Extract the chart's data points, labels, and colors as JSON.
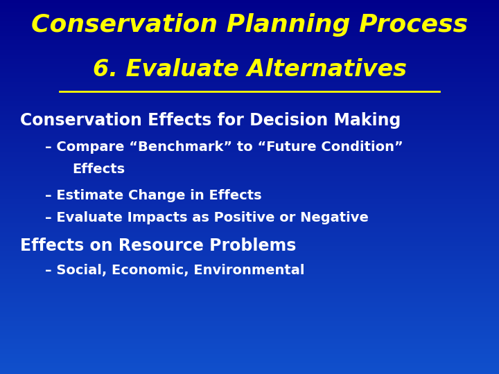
{
  "title_line1": "Conservation Planning Process",
  "title_line2": "6. Evaluate Alternatives",
  "title_color": "#FFFF00",
  "section1_heading": "Conservation Effects for Decision Making",
  "bullet1a": "– Compare “Benchmark” to “Future Condition”",
  "bullet1a_cont": "    Effects",
  "bullet1b": "– Estimate Change in Effects",
  "bullet1c": "– Evaluate Impacts as Positive or Negative",
  "section2_heading": "Effects on Resource Problems",
  "bullet2a": "– Social, Economic, Environmental",
  "heading_color": "#FFFFFF",
  "bullet_color": "#FFFFFF",
  "bg_top": "#00008B",
  "bg_bottom": "#1050CC",
  "figsize": [
    7.2,
    5.4
  ],
  "dpi": 100
}
